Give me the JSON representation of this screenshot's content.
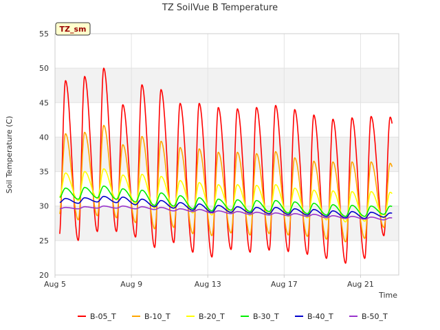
{
  "chart_data": {
    "type": "line",
    "title": "TZ SoilVue B Temperature",
    "xlabel": "Time",
    "ylabel": "Soil Temperature (C)",
    "ylim": [
      20,
      55
    ],
    "yticks": [
      20,
      25,
      30,
      35,
      40,
      45,
      50,
      55
    ],
    "xlim_days": [
      5.0,
      23.0
    ],
    "xticks": [
      {
        "label": "Aug 5",
        "day": 5
      },
      {
        "label": "Aug 9",
        "day": 9
      },
      {
        "label": "Aug 13",
        "day": 13
      },
      {
        "label": "Aug 17",
        "day": 17
      },
      {
        "label": "Aug 21",
        "day": 21
      }
    ],
    "x_start_day": 5.25,
    "x_end_day": 22.65,
    "peak_phase": 0.55,
    "trough_phase": 0.22,
    "banding": "alternate-gray",
    "station_tag": "TZ_sm",
    "legend_position": "bottom",
    "series": [
      {
        "name": "B-05_T",
        "color": "#ff0000",
        "peaks": [
          48.2,
          48.8,
          50.0,
          44.7,
          47.6,
          46.9,
          44.9,
          44.9,
          44.3,
          44.1,
          44.3,
          44.6,
          44.0,
          43.2,
          42.6,
          42.8,
          43.0,
          42.9
        ],
        "troughs": [
          25.5,
          25.0,
          26.3,
          26.3,
          25.5,
          24.0,
          24.7,
          23.3,
          22.6,
          23.7,
          23.3,
          23.6,
          23.4,
          23.0,
          22.4,
          21.7,
          22.4,
          25.7
        ]
      },
      {
        "name": "B-10_T",
        "color": "#ffa500",
        "peaks": [
          40.5,
          40.7,
          41.7,
          38.9,
          40.1,
          39.4,
          38.5,
          38.3,
          37.8,
          37.8,
          37.6,
          37.9,
          37.0,
          36.5,
          36.4,
          36.4,
          36.4,
          36.2
        ],
        "troughs": [
          28.6,
          28.0,
          28.6,
          28.3,
          27.6,
          26.7,
          26.9,
          26.0,
          25.7,
          26.1,
          25.8,
          26.0,
          25.8,
          25.6,
          25.2,
          24.8,
          25.3,
          26.9
        ]
      },
      {
        "name": "B-20_T",
        "color": "#ffff00",
        "peaks": [
          34.8,
          35.0,
          35.4,
          34.5,
          34.6,
          34.3,
          33.7,
          33.4,
          33.1,
          33.1,
          33.0,
          33.1,
          32.6,
          32.3,
          32.2,
          32.1,
          32.1,
          32.0
        ],
        "troughs": [
          31.2,
          30.8,
          31.1,
          30.9,
          30.3,
          29.7,
          29.7,
          29.0,
          28.7,
          28.9,
          28.6,
          28.7,
          28.5,
          28.3,
          28.0,
          27.7,
          27.8,
          28.3
        ]
      },
      {
        "name": "B-30_T",
        "color": "#00ee00",
        "peaks": [
          32.6,
          32.7,
          32.9,
          32.5,
          32.3,
          31.9,
          31.5,
          31.2,
          31.0,
          30.9,
          30.8,
          30.8,
          30.6,
          30.4,
          30.2,
          30.1,
          30.0,
          30.0
        ],
        "troughs": [
          31.2,
          31.0,
          31.2,
          31.0,
          30.6,
          30.1,
          30.0,
          29.6,
          29.3,
          29.4,
          29.2,
          29.2,
          29.0,
          28.9,
          28.7,
          28.5,
          28.5,
          28.8
        ]
      },
      {
        "name": "B-40_T",
        "color": "#0000cc",
        "peaks": [
          31.1,
          31.2,
          31.4,
          31.3,
          31.0,
          30.8,
          30.5,
          30.3,
          30.1,
          29.9,
          29.8,
          29.8,
          29.6,
          29.5,
          29.3,
          29.2,
          29.1,
          29.0
        ],
        "troughs": [
          30.5,
          30.4,
          30.6,
          30.5,
          30.2,
          29.9,
          29.7,
          29.4,
          29.1,
          29.1,
          29.0,
          28.9,
          28.8,
          28.7,
          28.5,
          28.3,
          28.2,
          28.4
        ]
      },
      {
        "name": "B-50_T",
        "color": "#9933cc",
        "peaks": [
          29.8,
          29.9,
          30.0,
          30.0,
          29.9,
          29.8,
          29.6,
          29.5,
          29.3,
          29.2,
          29.1,
          29.0,
          28.9,
          28.8,
          28.6,
          28.5,
          28.4,
          28.3
        ],
        "troughs": [
          29.6,
          29.6,
          29.7,
          29.7,
          29.6,
          29.5,
          29.3,
          29.2,
          29.0,
          28.9,
          28.8,
          28.7,
          28.6,
          28.5,
          28.3,
          28.2,
          28.1,
          28.0
        ]
      }
    ]
  }
}
